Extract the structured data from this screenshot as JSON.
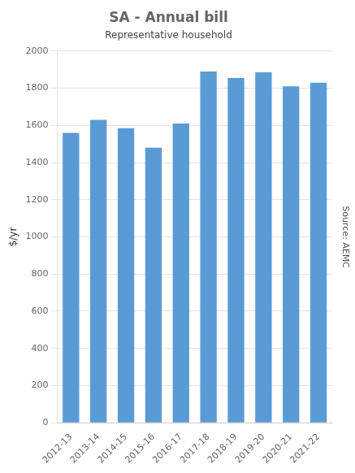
{
  "chart_data": {
    "type": "bar",
    "title": "SA - Annual bill",
    "subtitle": "Representative household",
    "ylabel": "$/yr",
    "annotation": "Source: AEMC",
    "categories": [
      "2012-13",
      "2013-14",
      "2014-15",
      "2015-16",
      "2016-17",
      "2017-18",
      "2018-19",
      "2019-20",
      "2020-21",
      "2021-22"
    ],
    "values": [
      1560,
      1630,
      1585,
      1480,
      1610,
      1890,
      1855,
      1885,
      1810,
      1830
    ],
    "color": "#5B9BD5",
    "ylim": [
      0,
      2000
    ],
    "yticks": [
      0,
      200,
      400,
      600,
      800,
      1000,
      1200,
      1400,
      1600,
      1800,
      2000
    ],
    "grid": true
  }
}
